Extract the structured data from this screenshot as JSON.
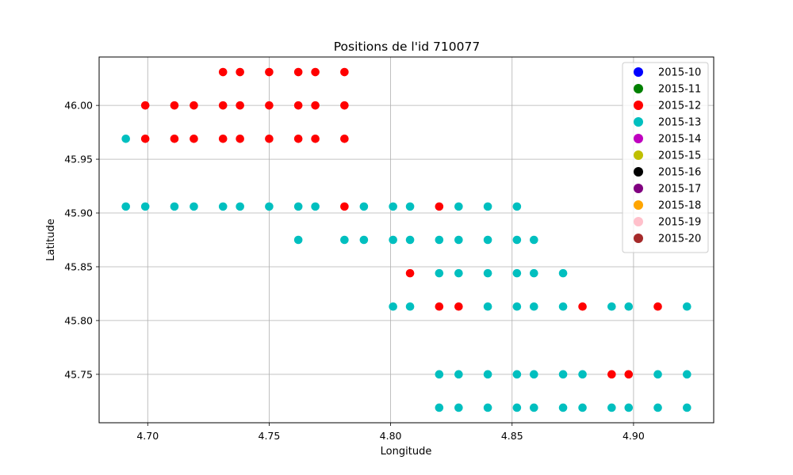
{
  "chart_data": {
    "type": "scatter",
    "title": "Positions de l'id 710077",
    "xlabel": "Longitude",
    "ylabel": "Latitude",
    "xlim": [
      4.68,
      4.933
    ],
    "ylim": [
      45.705,
      46.045
    ],
    "xticks": [
      "4.70",
      "4.75",
      "4.80",
      "4.85",
      "4.90"
    ],
    "yticks": [
      "45.75",
      "45.80",
      "45.85",
      "45.90",
      "45.95",
      "46.00"
    ],
    "grid": true,
    "legend_position": "top-right",
    "series": [
      {
        "name": "2015-10",
        "color": "#0000ff",
        "points": []
      },
      {
        "name": "2015-11",
        "color": "#008000",
        "points": []
      },
      {
        "name": "2015-12",
        "color": "#ff0000",
        "points": [
          [
            4.731,
            46.031
          ],
          [
            4.738,
            46.031
          ],
          [
            4.75,
            46.031
          ],
          [
            4.762,
            46.031
          ],
          [
            4.769,
            46.031
          ],
          [
            4.781,
            46.031
          ],
          [
            4.699,
            46.0
          ],
          [
            4.711,
            46.0
          ],
          [
            4.719,
            46.0
          ],
          [
            4.731,
            46.0
          ],
          [
            4.738,
            46.0
          ],
          [
            4.75,
            46.0
          ],
          [
            4.762,
            46.0
          ],
          [
            4.769,
            46.0
          ],
          [
            4.781,
            46.0
          ],
          [
            4.699,
            45.969
          ],
          [
            4.711,
            45.969
          ],
          [
            4.719,
            45.969
          ],
          [
            4.731,
            45.969
          ],
          [
            4.738,
            45.969
          ],
          [
            4.75,
            45.969
          ],
          [
            4.762,
            45.969
          ],
          [
            4.769,
            45.969
          ],
          [
            4.781,
            45.969
          ],
          [
            4.781,
            45.906
          ],
          [
            4.82,
            45.906
          ],
          [
            4.808,
            45.844
          ],
          [
            4.82,
            45.813
          ],
          [
            4.828,
            45.813
          ],
          [
            4.879,
            45.813
          ],
          [
            4.91,
            45.813
          ],
          [
            4.891,
            45.75
          ],
          [
            4.898,
            45.75
          ]
        ]
      },
      {
        "name": "2015-13",
        "color": "#00bfbf",
        "points": [
          [
            4.691,
            45.969
          ],
          [
            4.691,
            45.906
          ],
          [
            4.699,
            45.906
          ],
          [
            4.711,
            45.906
          ],
          [
            4.719,
            45.906
          ],
          [
            4.731,
            45.906
          ],
          [
            4.738,
            45.906
          ],
          [
            4.75,
            45.906
          ],
          [
            4.762,
            45.906
          ],
          [
            4.769,
            45.906
          ],
          [
            4.789,
            45.906
          ],
          [
            4.801,
            45.906
          ],
          [
            4.808,
            45.906
          ],
          [
            4.828,
            45.906
          ],
          [
            4.84,
            45.906
          ],
          [
            4.852,
            45.906
          ],
          [
            4.762,
            45.875
          ],
          [
            4.781,
            45.875
          ],
          [
            4.789,
            45.875
          ],
          [
            4.801,
            45.875
          ],
          [
            4.808,
            45.875
          ],
          [
            4.82,
            45.875
          ],
          [
            4.828,
            45.875
          ],
          [
            4.84,
            45.875
          ],
          [
            4.852,
            45.875
          ],
          [
            4.859,
            45.875
          ],
          [
            4.82,
            45.844
          ],
          [
            4.828,
            45.844
          ],
          [
            4.84,
            45.844
          ],
          [
            4.852,
            45.844
          ],
          [
            4.859,
            45.844
          ],
          [
            4.871,
            45.844
          ],
          [
            4.801,
            45.813
          ],
          [
            4.808,
            45.813
          ],
          [
            4.84,
            45.813
          ],
          [
            4.852,
            45.813
          ],
          [
            4.859,
            45.813
          ],
          [
            4.871,
            45.813
          ],
          [
            4.891,
            45.813
          ],
          [
            4.898,
            45.813
          ],
          [
            4.922,
            45.813
          ],
          [
            4.82,
            45.75
          ],
          [
            4.828,
            45.75
          ],
          [
            4.84,
            45.75
          ],
          [
            4.852,
            45.75
          ],
          [
            4.859,
            45.75
          ],
          [
            4.871,
            45.75
          ],
          [
            4.879,
            45.75
          ],
          [
            4.91,
            45.75
          ],
          [
            4.922,
            45.75
          ],
          [
            4.82,
            45.719
          ],
          [
            4.828,
            45.719
          ],
          [
            4.84,
            45.719
          ],
          [
            4.852,
            45.719
          ],
          [
            4.859,
            45.719
          ],
          [
            4.871,
            45.719
          ],
          [
            4.879,
            45.719
          ],
          [
            4.891,
            45.719
          ],
          [
            4.898,
            45.719
          ],
          [
            4.91,
            45.719
          ],
          [
            4.922,
            45.719
          ]
        ]
      },
      {
        "name": "2015-14",
        "color": "#bf00bf",
        "points": []
      },
      {
        "name": "2015-15",
        "color": "#bfbf00",
        "points": []
      },
      {
        "name": "2015-16",
        "color": "#000000",
        "points": []
      },
      {
        "name": "2015-17",
        "color": "#800080",
        "points": []
      },
      {
        "name": "2015-18",
        "color": "#ffa500",
        "points": []
      },
      {
        "name": "2015-19",
        "color": "#ffc0cb",
        "points": []
      },
      {
        "name": "2015-20",
        "color": "#a52a2a",
        "points": []
      }
    ]
  }
}
